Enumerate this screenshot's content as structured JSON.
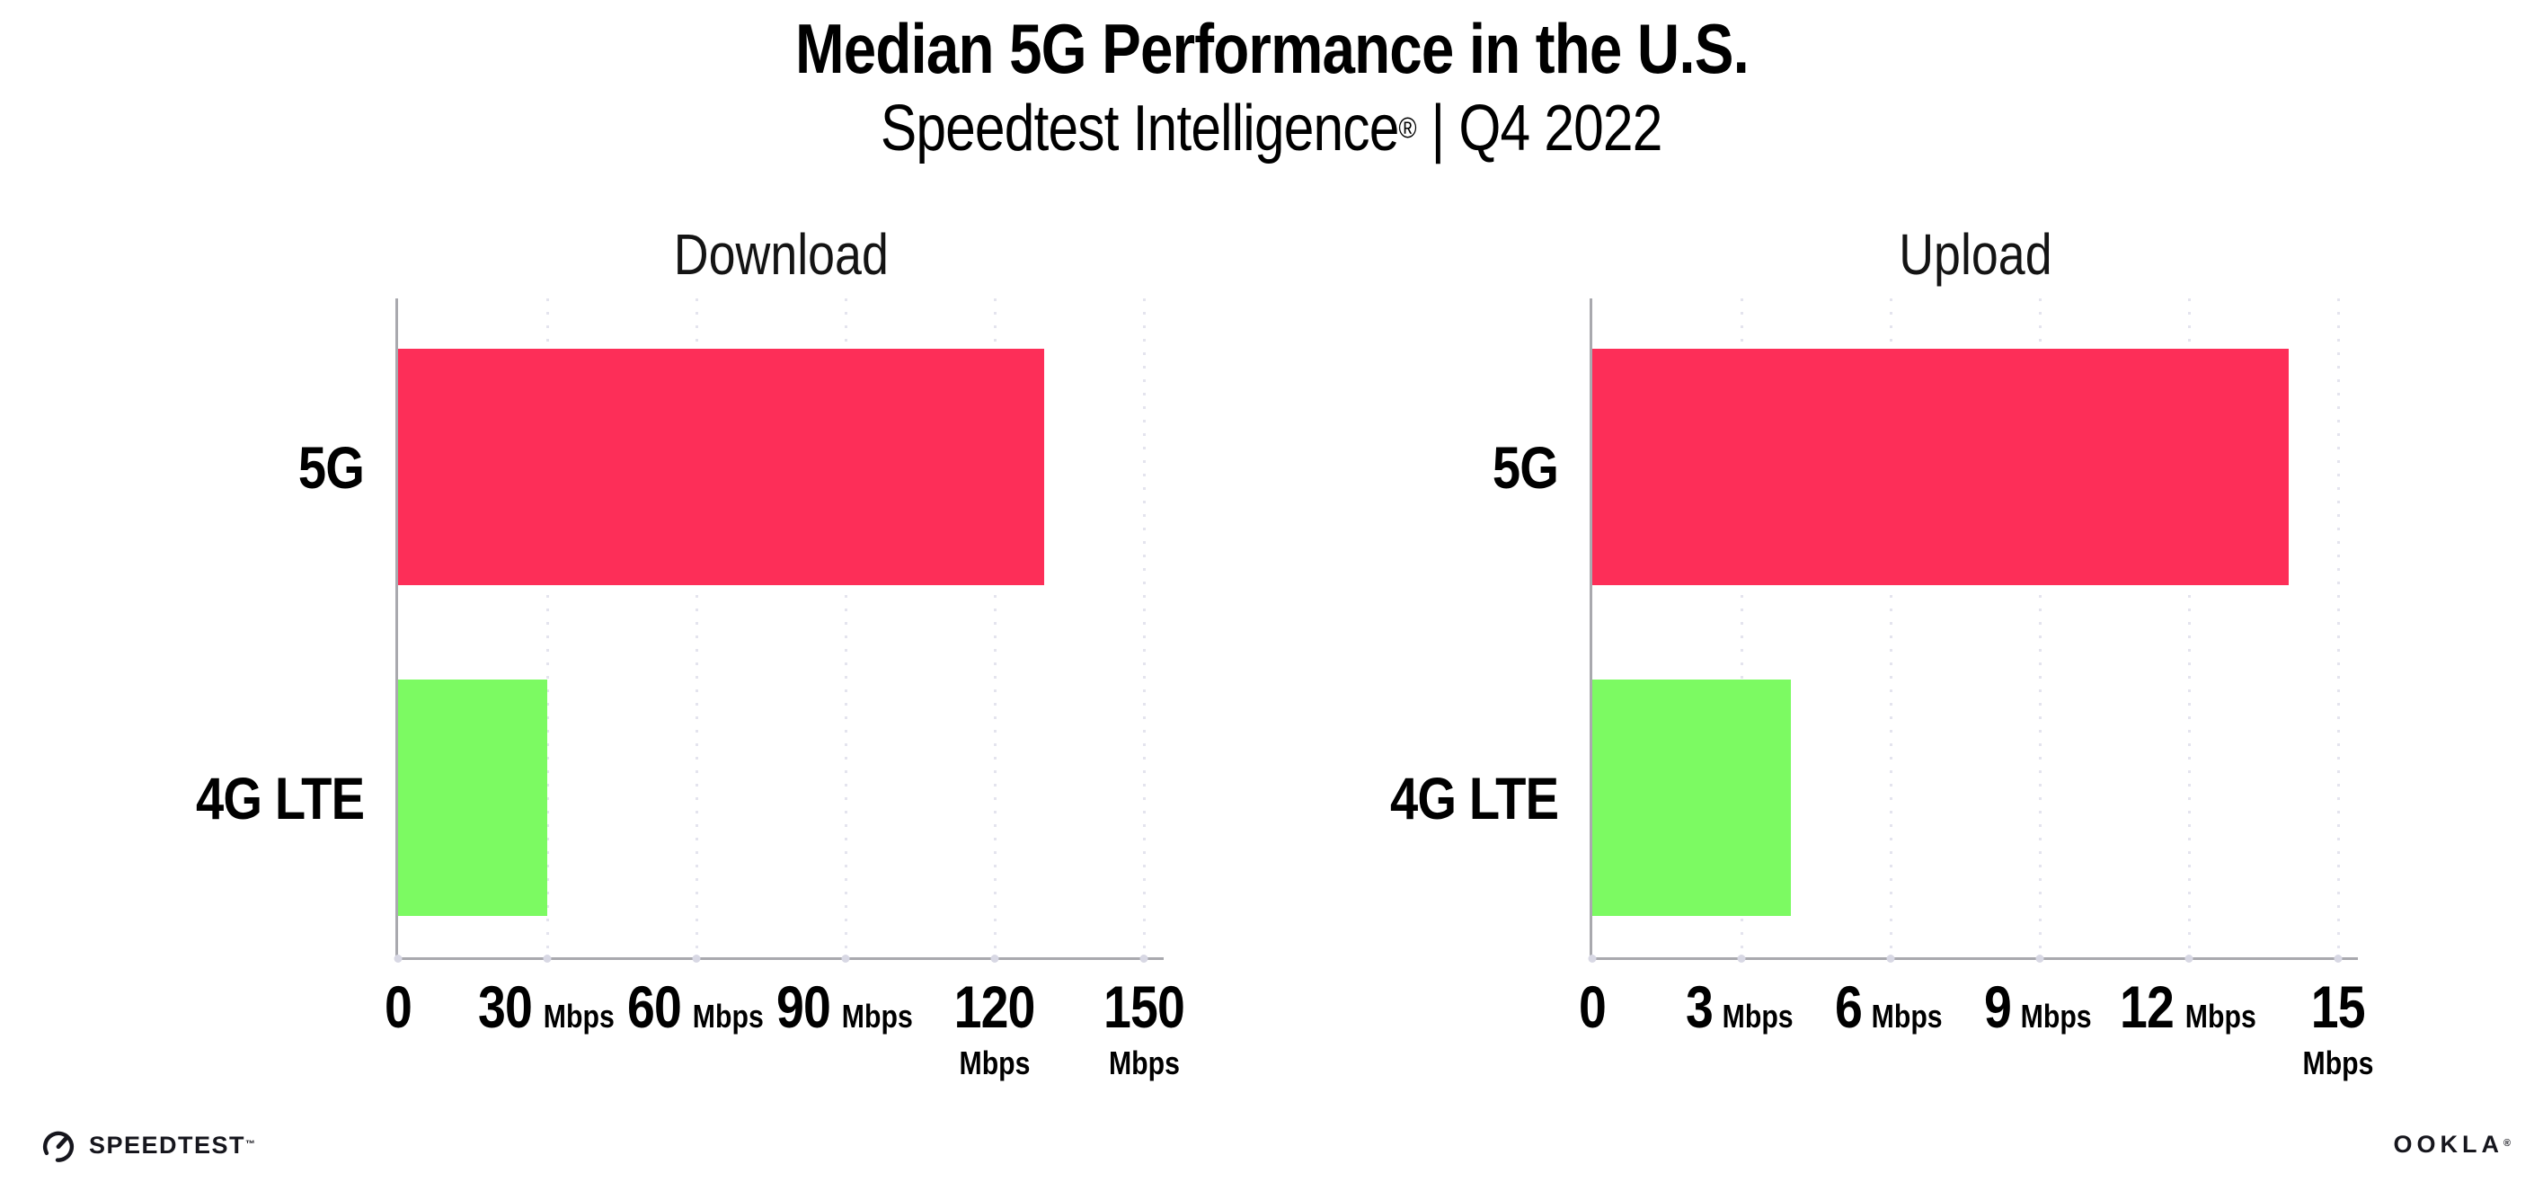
{
  "header": {
    "title": "Median 5G Performance in the U.S.",
    "subtitle_brand": "Speedtest Intelligence",
    "subtitle_mark": "®",
    "subtitle_rest": " | Q4 2022"
  },
  "chart_data": [
    {
      "type": "bar",
      "orientation": "horizontal",
      "title": "Download",
      "categories": [
        "5G",
        "4G LTE"
      ],
      "values": [
        130,
        30
      ],
      "unit": "Mbps",
      "xlim": [
        0,
        150
      ],
      "xticks": [
        0,
        30,
        60,
        90,
        120,
        150
      ],
      "bar_colors": [
        "#FD2E58",
        "#7CFA62"
      ],
      "grid": "dotted-vertical-gridlines",
      "legend": "none"
    },
    {
      "type": "bar",
      "orientation": "horizontal",
      "title": "Upload",
      "categories": [
        "5G",
        "4G LTE"
      ],
      "values": [
        14,
        4
      ],
      "unit": "Mbps",
      "xlim": [
        0,
        15
      ],
      "xticks": [
        0,
        3,
        6,
        9,
        12,
        15
      ],
      "bar_colors": [
        "#FD2E58",
        "#7CFA62"
      ],
      "grid": "dotted-vertical-gridlines",
      "legend": "none"
    }
  ],
  "footer": {
    "speedtest": {
      "label": "SPEEDTEST",
      "mark": "™",
      "icon": "speedtest-gauge-icon"
    },
    "ookla": {
      "label": "OOKLA",
      "mark": "®"
    }
  },
  "colors": {
    "bar_5g": "#FD2E58",
    "bar_4g_lte": "#7CFA62",
    "axis": "#A9A9AE",
    "gridline": "#E4E4EE",
    "text": "#000000",
    "background": "#FFFFFF"
  }
}
